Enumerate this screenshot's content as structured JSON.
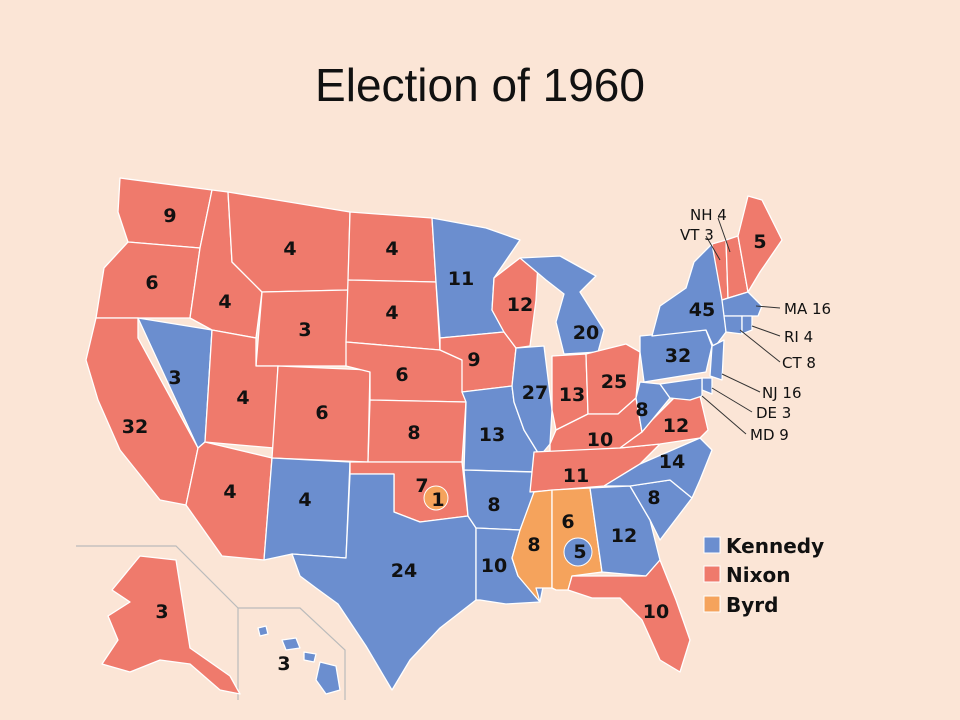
{
  "title": "Election of 1960",
  "colors": {
    "kennedy": "#6b8ecf",
    "nixon": "#ef7a6c",
    "byrd": "#f5a35c",
    "background": "#fbe5d6"
  },
  "legend": [
    {
      "key": "kennedy",
      "label": "Kennedy"
    },
    {
      "key": "nixon",
      "label": "Nixon"
    },
    {
      "key": "byrd",
      "label": "Byrd"
    }
  ],
  "states": {
    "WA": {
      "ev": "9",
      "winner": "nixon"
    },
    "OR": {
      "ev": "6",
      "winner": "nixon"
    },
    "CA": {
      "ev": "32",
      "winner": "nixon"
    },
    "ID": {
      "ev": "4",
      "winner": "nixon"
    },
    "NV": {
      "ev": "3",
      "winner": "kennedy"
    },
    "MT": {
      "ev": "4",
      "winner": "nixon"
    },
    "WY": {
      "ev": "3",
      "winner": "nixon"
    },
    "UT": {
      "ev": "4",
      "winner": "nixon"
    },
    "AZ": {
      "ev": "4",
      "winner": "nixon"
    },
    "CO": {
      "ev": "6",
      "winner": "nixon"
    },
    "NM": {
      "ev": "4",
      "winner": "kennedy"
    },
    "ND": {
      "ev": "4",
      "winner": "nixon"
    },
    "SD": {
      "ev": "4",
      "winner": "nixon"
    },
    "NE": {
      "ev": "6",
      "winner": "nixon"
    },
    "KS": {
      "ev": "8",
      "winner": "nixon"
    },
    "OK": {
      "ev": "7",
      "winner": "nixon"
    },
    "OK_BYRD": {
      "ev": "1",
      "winner": "byrd"
    },
    "TX": {
      "ev": "24",
      "winner": "kennedy"
    },
    "MN": {
      "ev": "11",
      "winner": "kennedy"
    },
    "IA": {
      "ev": "9",
      "winner": "nixon"
    },
    "MO": {
      "ev": "13",
      "winner": "kennedy"
    },
    "AR": {
      "ev": "8",
      "winner": "kennedy"
    },
    "LA": {
      "ev": "10",
      "winner": "kennedy"
    },
    "WI": {
      "ev": "12",
      "winner": "nixon"
    },
    "IL": {
      "ev": "27",
      "winner": "kennedy"
    },
    "MI": {
      "ev": "20",
      "winner": "kennedy"
    },
    "IN": {
      "ev": "13",
      "winner": "nixon"
    },
    "OH": {
      "ev": "25",
      "winner": "nixon"
    },
    "KY": {
      "ev": "10",
      "winner": "nixon"
    },
    "TN": {
      "ev": "11",
      "winner": "nixon"
    },
    "MS": {
      "ev": "8",
      "winner": "byrd"
    },
    "AL": {
      "ev": "6",
      "winner": "byrd"
    },
    "AL_K": {
      "ev": "5",
      "winner": "kennedy"
    },
    "GA": {
      "ev": "12",
      "winner": "kennedy"
    },
    "FL": {
      "ev": "10",
      "winner": "nixon"
    },
    "SC": {
      "ev": "8",
      "winner": "kennedy"
    },
    "NC": {
      "ev": "14",
      "winner": "kennedy"
    },
    "VA": {
      "ev": "12",
      "winner": "nixon"
    },
    "WV": {
      "ev": "8",
      "winner": "kennedy"
    },
    "PA": {
      "ev": "32",
      "winner": "kennedy"
    },
    "NY": {
      "ev": "45",
      "winner": "kennedy"
    },
    "ME": {
      "ev": "5",
      "winner": "nixon"
    },
    "AK": {
      "ev": "3",
      "winner": "nixon"
    },
    "HI": {
      "ev": "3",
      "winner": "kennedy"
    }
  },
  "callouts": {
    "NH": "NH 4",
    "VT": "VT 3",
    "MA": "MA 16",
    "RI": "RI 4",
    "CT": "CT 8",
    "NJ": "NJ 16",
    "DE": "DE 3",
    "MD": "MD 9"
  }
}
